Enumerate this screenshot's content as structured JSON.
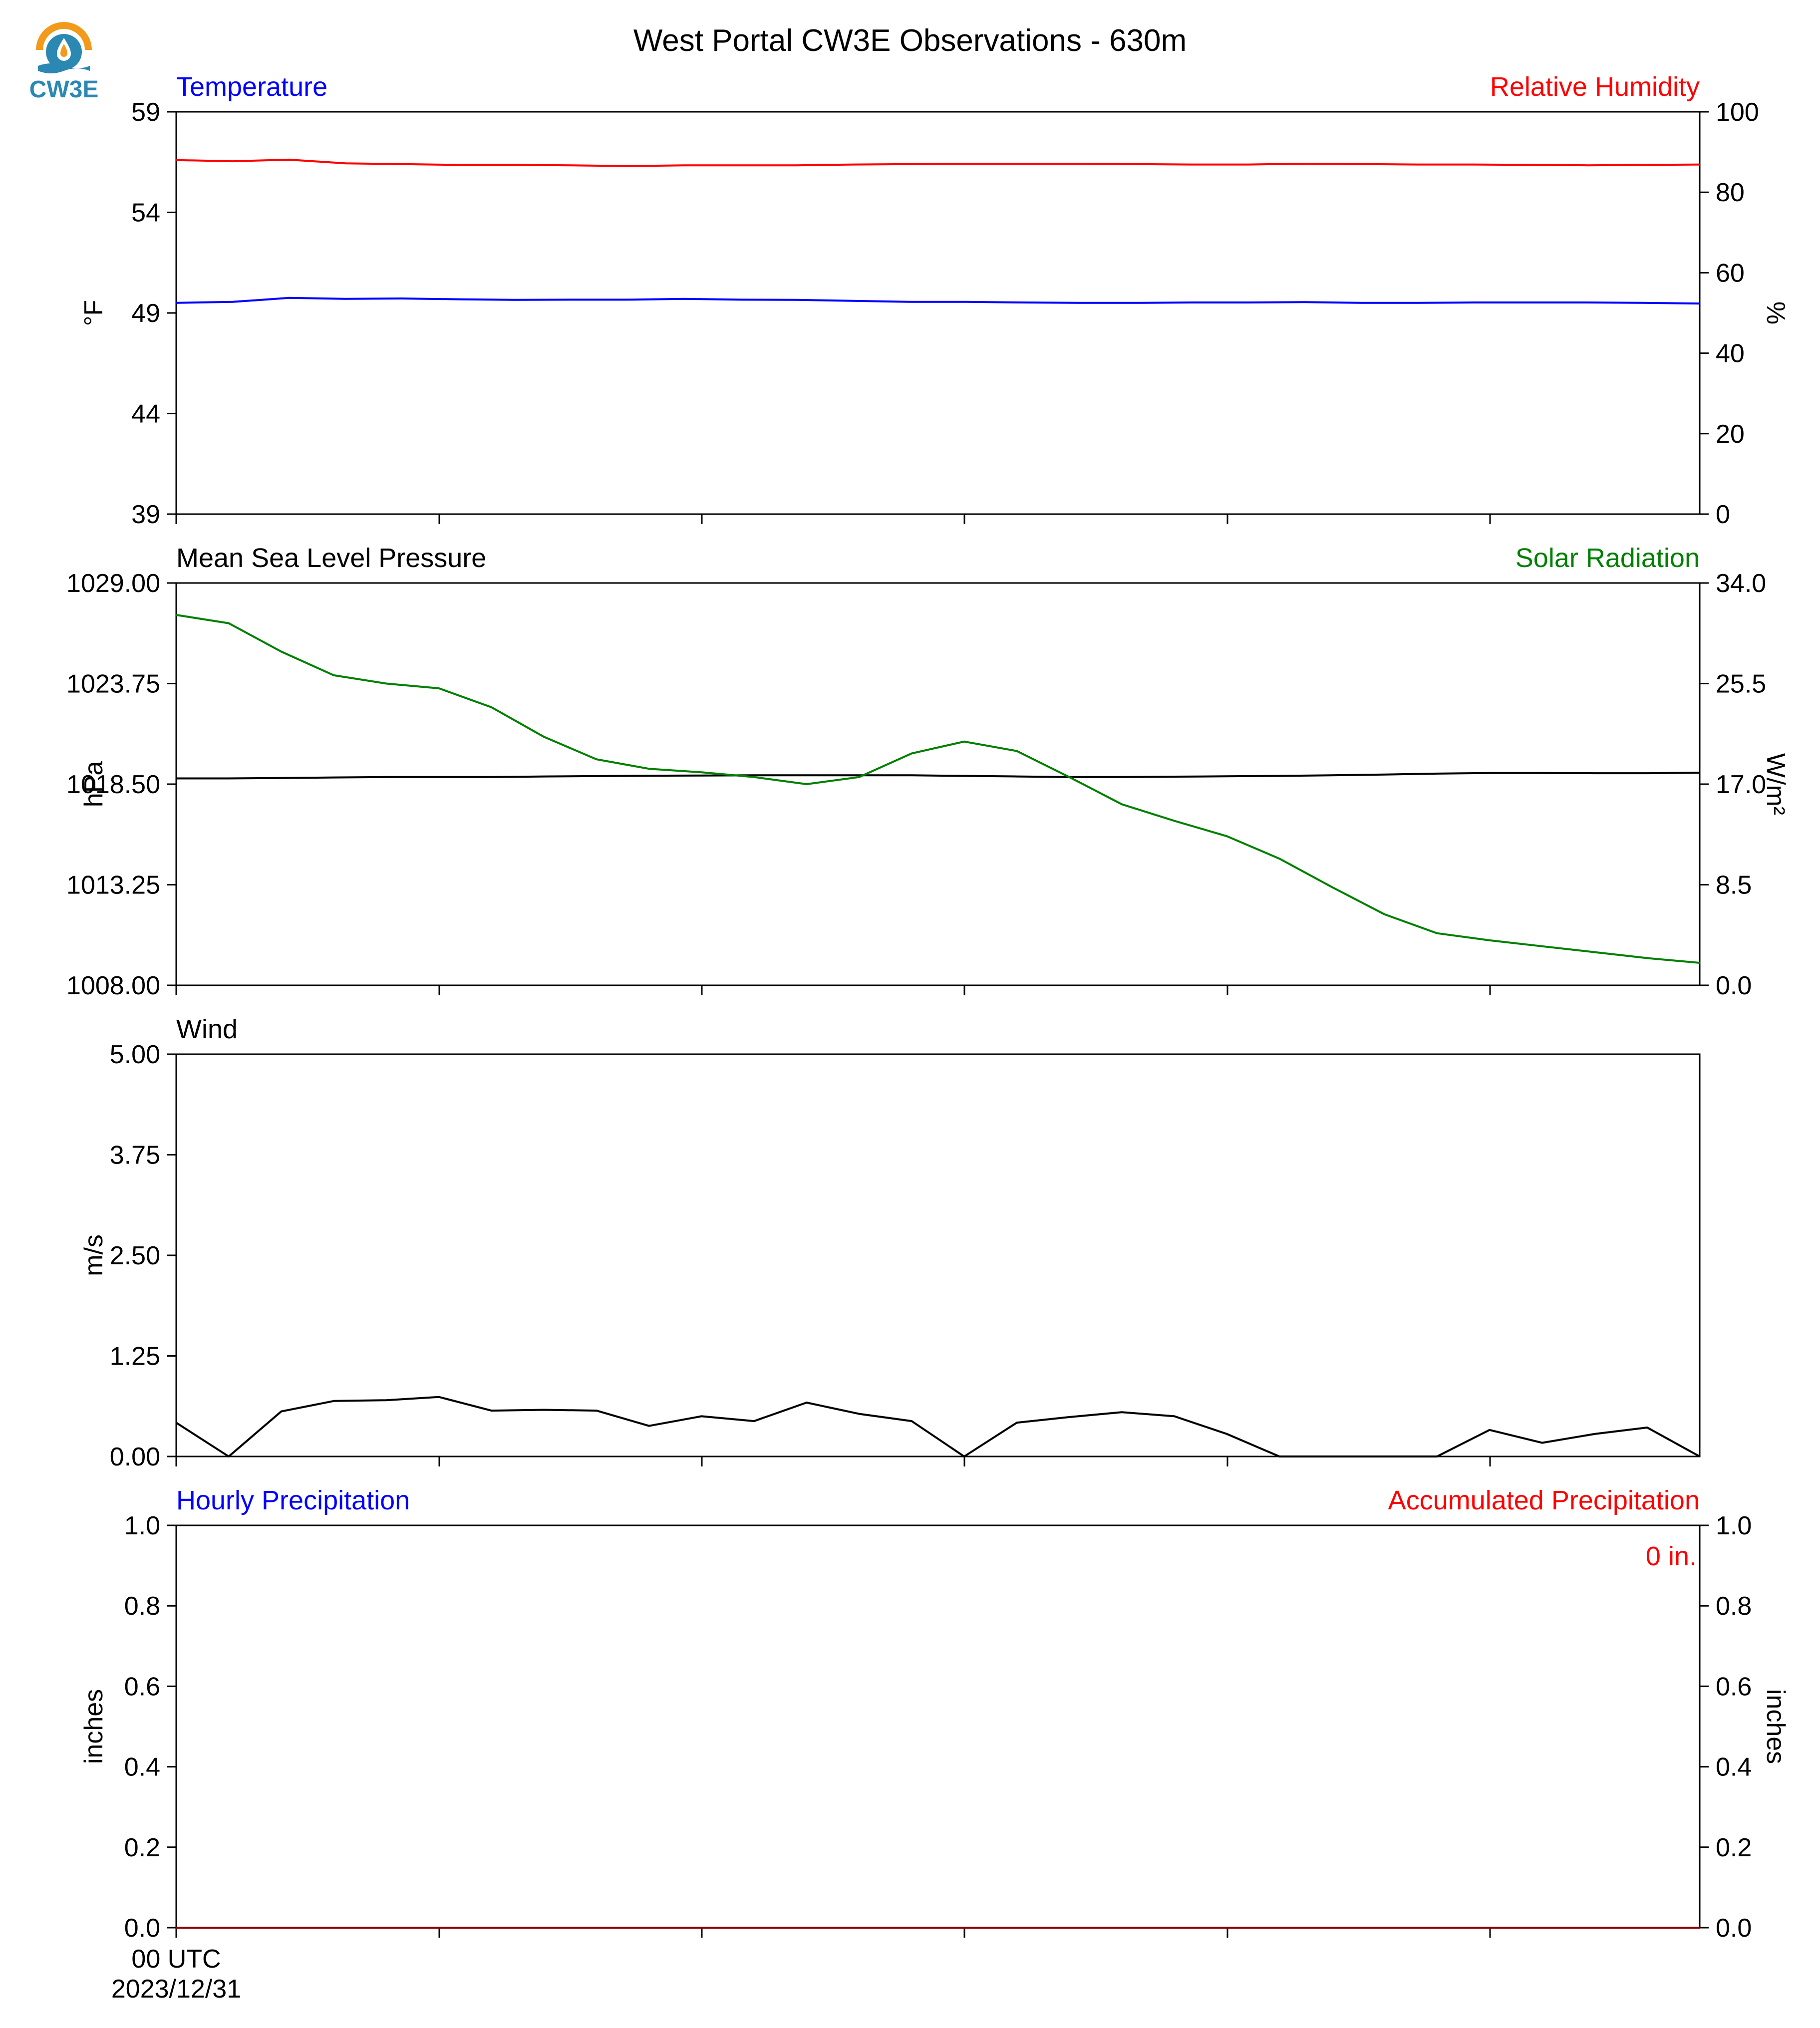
{
  "title": "West Portal CW3E Observations - 630m",
  "logo": {
    "text": "CW3E",
    "icon": "cw3e-logo-icon",
    "colors": {
      "sun": "#f29a1c",
      "water": "#2a88b3"
    }
  },
  "chart_data": [
    {
      "id": "temp-rh",
      "type": "line",
      "left_title": "Temperature",
      "right_title": "Relative Humidity",
      "left_title_color": "#0000ff",
      "right_title_color": "#ff0000",
      "ylabel": "°F",
      "ylabel_right": "%",
      "ylim": [
        39,
        59
      ],
      "ylim_right": [
        0,
        100
      ],
      "yticks": [
        "59",
        "54",
        "49",
        "44",
        "39"
      ],
      "yticks_right": [
        "100",
        "80",
        "60",
        "40",
        "20",
        "0"
      ],
      "ytick_values": [
        59,
        54,
        49,
        44,
        39
      ],
      "ytick_values_right": [
        100,
        80,
        60,
        40,
        20,
        0
      ],
      "grid": false,
      "series": [
        {
          "name": "Temperature",
          "axis": "left",
          "color": "#0000ff",
          "values": [
            49.5,
            49.55,
            49.75,
            49.7,
            49.72,
            49.68,
            49.65,
            49.66,
            49.66,
            49.7,
            49.66,
            49.65,
            49.6,
            49.55,
            49.55,
            49.52,
            49.5,
            49.5,
            49.52,
            49.52,
            49.54,
            49.5,
            49.5,
            49.52,
            49.52,
            49.52,
            49.5,
            49.47
          ]
        },
        {
          "name": "Relative Humidity",
          "axis": "right",
          "color": "#ff0000",
          "values": [
            88.0,
            87.7,
            88.1,
            87.2,
            87.0,
            86.8,
            86.8,
            86.7,
            86.5,
            86.7,
            86.7,
            86.7,
            86.9,
            87.0,
            87.1,
            87.1,
            87.1,
            87.0,
            86.9,
            86.9,
            87.1,
            87.0,
            86.9,
            86.9,
            86.8,
            86.7,
            86.8,
            86.9
          ]
        }
      ]
    },
    {
      "id": "pressure-solar",
      "type": "line",
      "left_title": "Mean Sea Level Pressure",
      "right_title": "Solar Radiation",
      "left_title_color": "#000000",
      "right_title_color": "#008000",
      "ylabel": "hPa",
      "ylabel_right": "W/m²",
      "ylim": [
        1008.0,
        1029.0
      ],
      "ylim_right": [
        0.0,
        34.0
      ],
      "yticks": [
        "1029.00",
        "1023.75",
        "1018.50",
        "1013.25",
        "1008.00"
      ],
      "yticks_right": [
        "34.0",
        "25.5",
        "17.0",
        "8.5",
        "0.0"
      ],
      "ytick_values": [
        1029.0,
        1023.75,
        1018.5,
        1013.25,
        1008.0
      ],
      "ytick_values_right": [
        34.0,
        25.5,
        17.0,
        8.5,
        0.0
      ],
      "grid": false,
      "series": [
        {
          "name": "Mean Sea Level Pressure",
          "axis": "left",
          "color": "#000000",
          "values": [
            1018.8,
            1018.8,
            1018.82,
            1018.85,
            1018.87,
            1018.87,
            1018.87,
            1018.9,
            1018.92,
            1018.94,
            1018.95,
            1018.96,
            1018.96,
            1018.96,
            1018.96,
            1018.93,
            1018.9,
            1018.87,
            1018.87,
            1018.89,
            1018.91,
            1018.93,
            1018.96,
            1019.0,
            1019.05,
            1019.08,
            1019.08,
            1019.07,
            1019.07,
            1019.1
          ]
        },
        {
          "name": "Solar Radiation",
          "axis": "right",
          "color": "#008000",
          "values": [
            31.3,
            30.6,
            28.2,
            26.2,
            25.5,
            25.1,
            23.5,
            21.0,
            19.1,
            18.3,
            18.0,
            17.6,
            17.0,
            17.6,
            19.6,
            20.6,
            19.8,
            17.6,
            15.3,
            13.9,
            12.6,
            10.7,
            8.3,
            6.0,
            4.4,
            3.8,
            3.3,
            2.8,
            2.3,
            1.9
          ]
        }
      ]
    },
    {
      "id": "wind",
      "type": "line",
      "left_title": "Wind",
      "left_title_color": "#000000",
      "ylabel": "m/s",
      "ylim": [
        0.0,
        5.0
      ],
      "yticks": [
        "5.00",
        "3.75",
        "2.50",
        "1.25",
        "0.00"
      ],
      "ytick_values": [
        5.0,
        3.75,
        2.5,
        1.25,
        0.0
      ],
      "grid": false,
      "series": [
        {
          "name": "Wind",
          "axis": "left",
          "color": "#000000",
          "values": [
            0.42,
            0.0,
            0.56,
            0.69,
            0.7,
            0.74,
            0.57,
            0.58,
            0.57,
            0.38,
            0.5,
            0.44,
            0.67,
            0.53,
            0.44,
            0.0,
            0.42,
            0.49,
            0.55,
            0.5,
            0.28,
            0.0,
            0.0,
            0.0,
            0.0,
            0.33,
            0.17,
            0.28,
            0.36,
            0.0
          ]
        }
      ]
    },
    {
      "id": "precip",
      "type": "line",
      "left_title": "Hourly Precipitation",
      "right_title": "Accumulated Precipitation",
      "left_title_color": "#0000ff",
      "right_title_color": "#ff0000",
      "ylabel": "inches",
      "ylabel_right": "inches",
      "ylim": [
        0.0,
        1.0
      ],
      "ylim_right": [
        0.0,
        1.0
      ],
      "yticks": [
        "1.0",
        "0.8",
        "0.6",
        "0.4",
        "0.2",
        "0.0"
      ],
      "yticks_right": [
        "1.0",
        "0.8",
        "0.6",
        "0.4",
        "0.2",
        "0.0"
      ],
      "ytick_values": [
        1.0,
        0.8,
        0.6,
        0.4,
        0.2,
        0.0
      ],
      "ytick_values_right": [
        1.0,
        0.8,
        0.6,
        0.4,
        0.2,
        0.0
      ],
      "annotation": "0 in.",
      "grid": false,
      "xtick_label_line1": "00 UTC",
      "xtick_label_line2": "2023/12/31",
      "series": [
        {
          "name": "Hourly Precipitation",
          "axis": "left",
          "color": "#0000ff",
          "values": [
            0,
            0,
            0,
            0,
            0,
            0,
            0,
            0,
            0,
            0,
            0,
            0,
            0,
            0,
            0,
            0,
            0,
            0,
            0,
            0,
            0,
            0,
            0,
            0,
            0,
            0,
            0,
            0,
            0,
            0
          ]
        },
        {
          "name": "Accumulated Precipitation",
          "axis": "right",
          "color": "#8b0000",
          "values": [
            0,
            0,
            0,
            0,
            0,
            0,
            0,
            0,
            0,
            0,
            0,
            0,
            0,
            0,
            0,
            0,
            0,
            0,
            0,
            0,
            0,
            0,
            0,
            0,
            0,
            0,
            0,
            0,
            0,
            0
          ]
        }
      ]
    }
  ]
}
